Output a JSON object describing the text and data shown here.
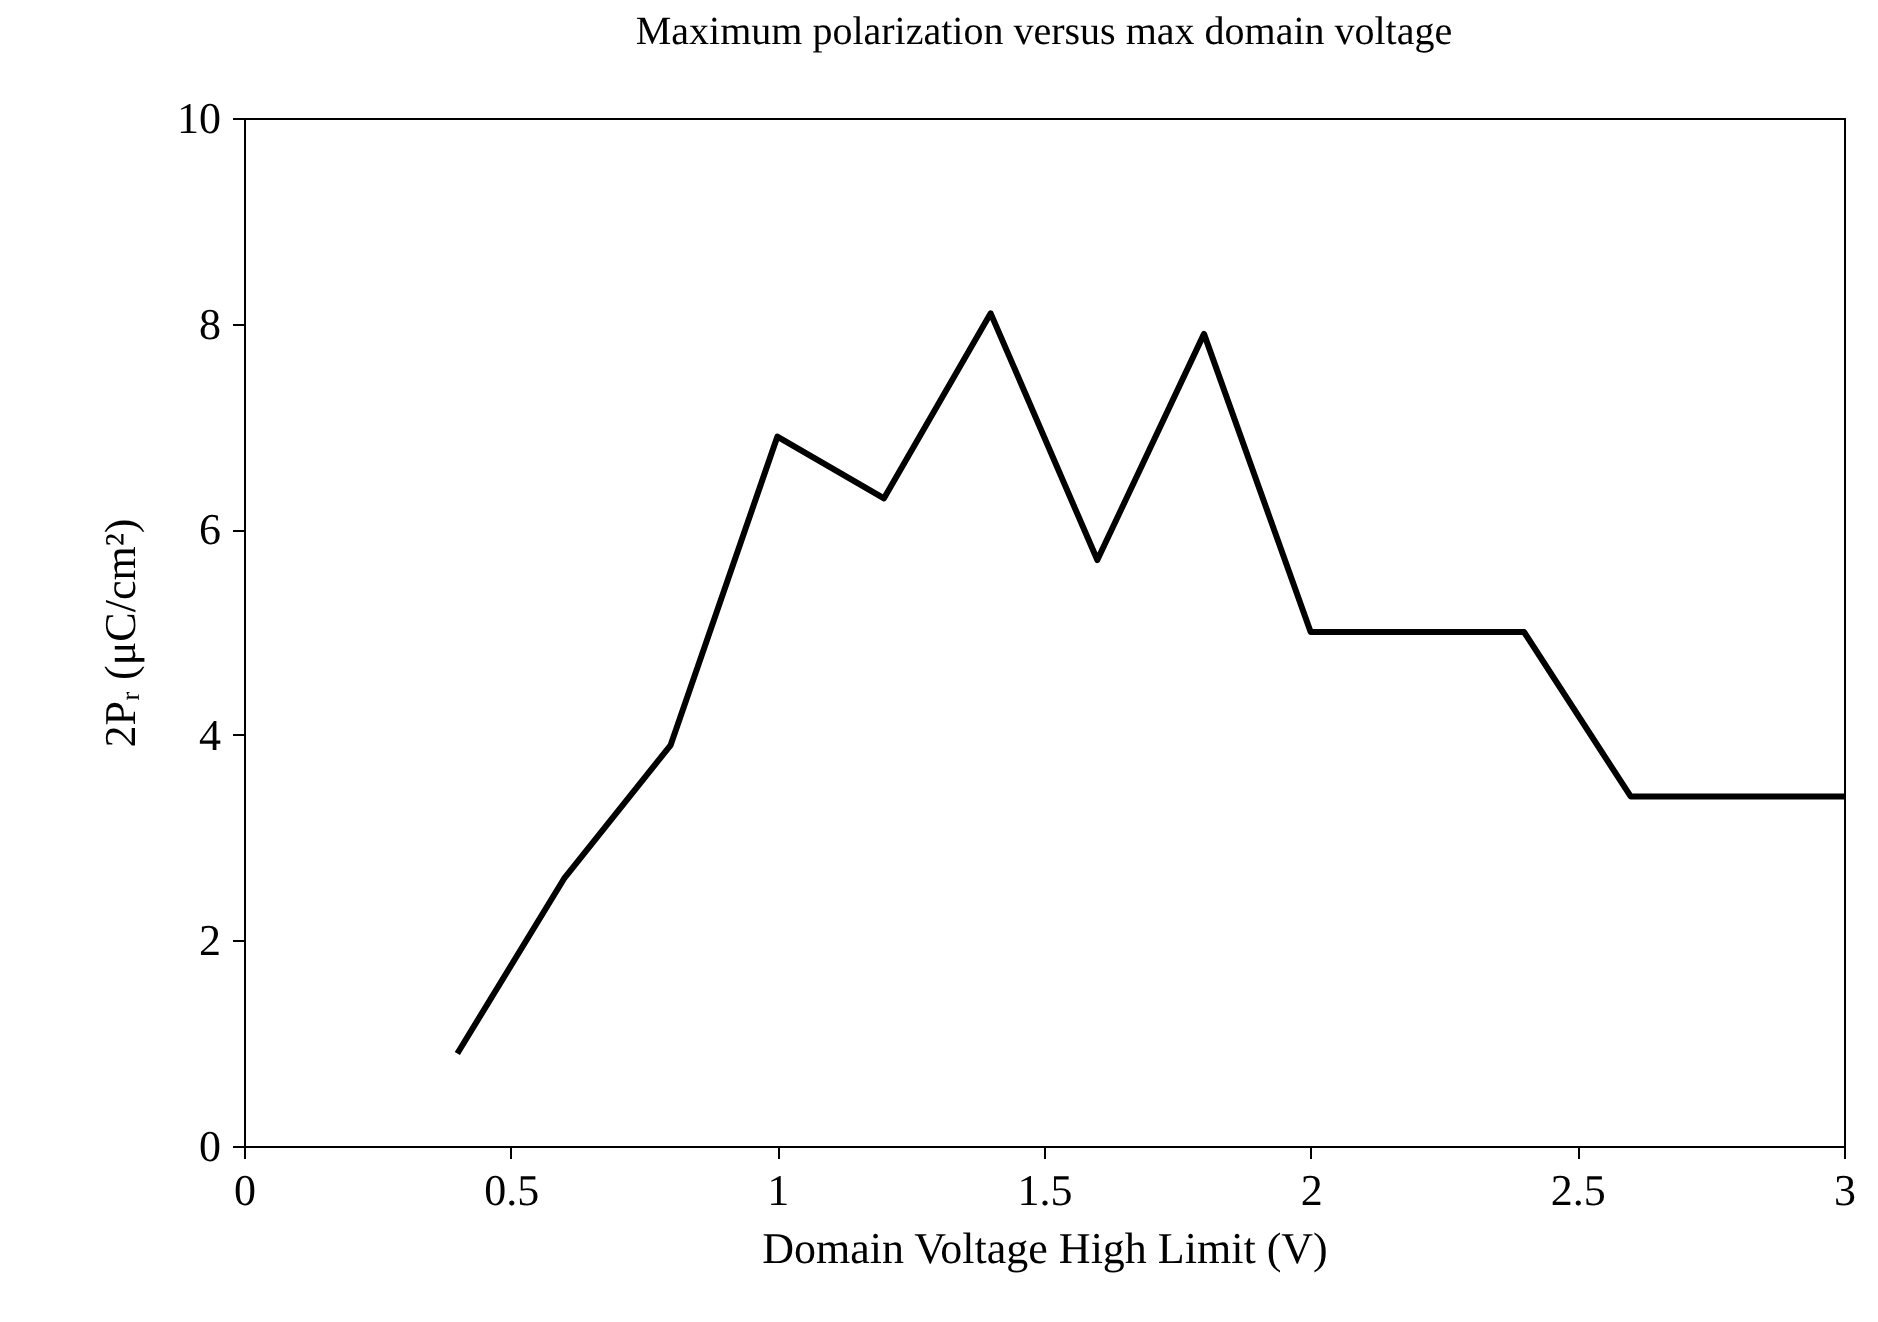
{
  "chart_data": {
    "type": "line",
    "title": "Maximum polarization versus max domain voltage",
    "xlabel": "Domain Voltage High Limit (V)",
    "ylabel": "2Pᵣ (μC/cm²)",
    "x": [
      0.4,
      0.6,
      0.8,
      1.0,
      1.2,
      1.4,
      1.6,
      1.8,
      2.0,
      2.2,
      2.4,
      2.6,
      2.8,
      3.0
    ],
    "series": [
      {
        "color": "#000000",
        "values": [
          0.9,
          2.6,
          3.9,
          6.9,
          6.3,
          8.1,
          5.7,
          7.9,
          5.0,
          5.0,
          5.0,
          3.4,
          3.4,
          3.4
        ]
      }
    ],
    "xlim": [
      0,
      3
    ],
    "xticks": [
      0,
      0.5,
      1,
      1.5,
      2,
      2.5,
      3
    ],
    "ylim": [
      0,
      10
    ],
    "yticks": [
      0,
      2,
      4,
      6,
      8,
      10
    ],
    "grid": false,
    "marker": "none",
    "line_style": "solid"
  }
}
